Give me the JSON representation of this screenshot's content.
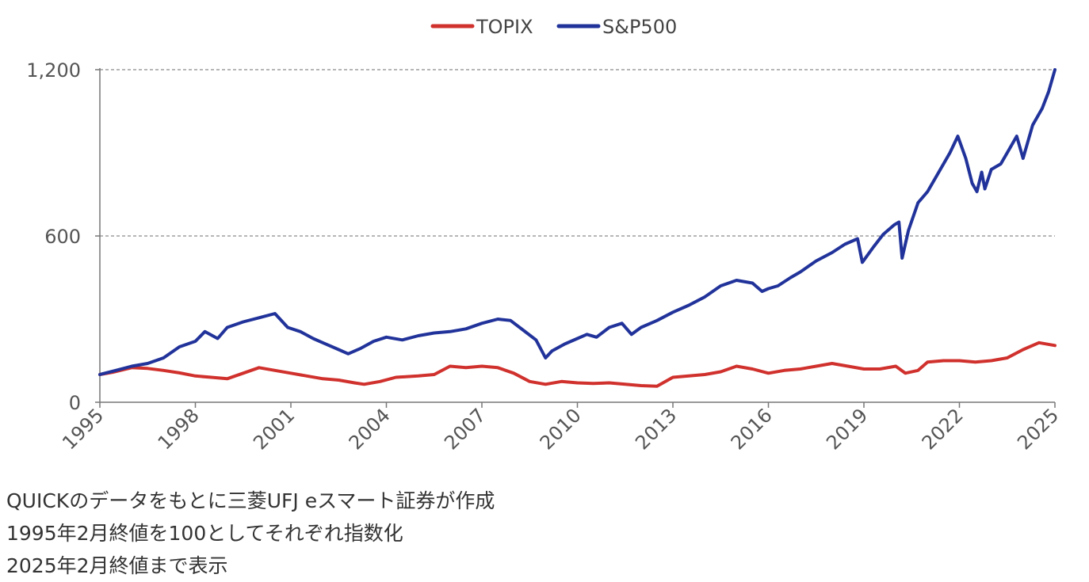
{
  "chart_data": {
    "type": "line",
    "title": "",
    "xlabel": "",
    "ylabel": "",
    "xlim": [
      1995,
      2025
    ],
    "ylim": [
      0,
      1200
    ],
    "yticks": [
      0,
      600,
      1200
    ],
    "ytick_labels": [
      "0",
      "600",
      "1,200"
    ],
    "xticks": [
      1995,
      1998,
      2001,
      2004,
      2007,
      2010,
      2013,
      2016,
      2019,
      2022,
      2025
    ],
    "xtick_labels": [
      "1995",
      "1998",
      "2001",
      "2004",
      "2007",
      "2010",
      "2013",
      "2016",
      "2019",
      "2022",
      "2025"
    ],
    "grid": "horizontal dashed at 600 and 1,200",
    "legend": "top-center",
    "series": [
      {
        "name": "TOPIX",
        "color": "#d0312d",
        "x": [
          1995.0,
          1995.4,
          1996.0,
          1996.5,
          1997.0,
          1997.5,
          1998.0,
          1998.5,
          1999.0,
          1999.5,
          2000.0,
          2000.5,
          2001.0,
          2001.5,
          2002.0,
          2002.5,
          2003.0,
          2003.3,
          2003.8,
          2004.3,
          2005.0,
          2005.5,
          2006.0,
          2006.5,
          2007.0,
          2007.5,
          2008.0,
          2008.5,
          2009.0,
          2009.5,
          2010.0,
          2010.5,
          2011.0,
          2011.5,
          2012.0,
          2012.5,
          2013.0,
          2013.5,
          2014.0,
          2014.5,
          2015.0,
          2015.5,
          2016.0,
          2016.5,
          2017.0,
          2017.5,
          2018.0,
          2018.5,
          2019.0,
          2019.5,
          2020.0,
          2020.3,
          2020.7,
          2021.0,
          2021.5,
          2022.0,
          2022.5,
          2023.0,
          2023.5,
          2024.0,
          2024.5,
          2025.0
        ],
        "values": [
          100,
          108,
          125,
          122,
          115,
          106,
          95,
          90,
          85,
          105,
          125,
          115,
          105,
          95,
          85,
          80,
          70,
          65,
          75,
          90,
          95,
          100,
          130,
          125,
          130,
          125,
          105,
          75,
          65,
          75,
          70,
          68,
          70,
          65,
          60,
          58,
          90,
          95,
          100,
          110,
          130,
          120,
          105,
          115,
          120,
          130,
          140,
          130,
          120,
          120,
          130,
          105,
          115,
          145,
          150,
          150,
          145,
          150,
          160,
          190,
          215,
          205
        ]
      },
      {
        "name": "S&P500",
        "color": "#21339a",
        "x": [
          1995.0,
          1995.5,
          1996.0,
          1996.5,
          1997.0,
          1997.5,
          1998.0,
          1998.3,
          1998.7,
          1999.0,
          1999.5,
          2000.0,
          2000.5,
          2000.9,
          2001.3,
          2001.7,
          2002.0,
          2002.5,
          2002.8,
          2003.2,
          2003.6,
          2004.0,
          2004.5,
          2005.0,
          2005.5,
          2006.0,
          2006.5,
          2007.0,
          2007.5,
          2007.9,
          2008.3,
          2008.7,
          2009.0,
          2009.2,
          2009.6,
          2010.0,
          2010.3,
          2010.6,
          2011.0,
          2011.4,
          2011.7,
          2012.0,
          2012.5,
          2013.0,
          2013.5,
          2014.0,
          2014.5,
          2015.0,
          2015.5,
          2015.8,
          2016.0,
          2016.3,
          2016.7,
          2017.0,
          2017.5,
          2018.0,
          2018.4,
          2018.8,
          2018.95,
          2019.3,
          2019.6,
          2019.95,
          2020.1,
          2020.2,
          2020.4,
          2020.7,
          2021.0,
          2021.3,
          2021.7,
          2021.95,
          2022.2,
          2022.4,
          2022.55,
          2022.7,
          2022.8,
          2023.0,
          2023.3,
          2023.6,
          2023.8,
          2024.0,
          2024.3,
          2024.6,
          2024.8,
          2025.0
        ],
        "values": [
          100,
          115,
          130,
          140,
          160,
          200,
          220,
          255,
          230,
          270,
          290,
          305,
          320,
          270,
          255,
          230,
          215,
          190,
          175,
          195,
          220,
          235,
          225,
          240,
          250,
          255,
          265,
          285,
          300,
          295,
          260,
          225,
          160,
          185,
          210,
          230,
          245,
          235,
          270,
          285,
          245,
          270,
          295,
          325,
          350,
          380,
          420,
          440,
          430,
          400,
          410,
          420,
          450,
          470,
          510,
          540,
          570,
          590,
          505,
          560,
          605,
          640,
          650,
          520,
          620,
          720,
          760,
          820,
          900,
          960,
          880,
          790,
          760,
          830,
          770,
          840,
          860,
          920,
          960,
          880,
          1000,
          1060,
          1120,
          1200
        ]
      }
    ]
  },
  "notes": [
    "QUICKのデータをもとに三菱UFJ eスマート証券が作成",
    "1995年2月終値を100としてそれぞれ指数化",
    "2025年2月終値まで表示"
  ]
}
